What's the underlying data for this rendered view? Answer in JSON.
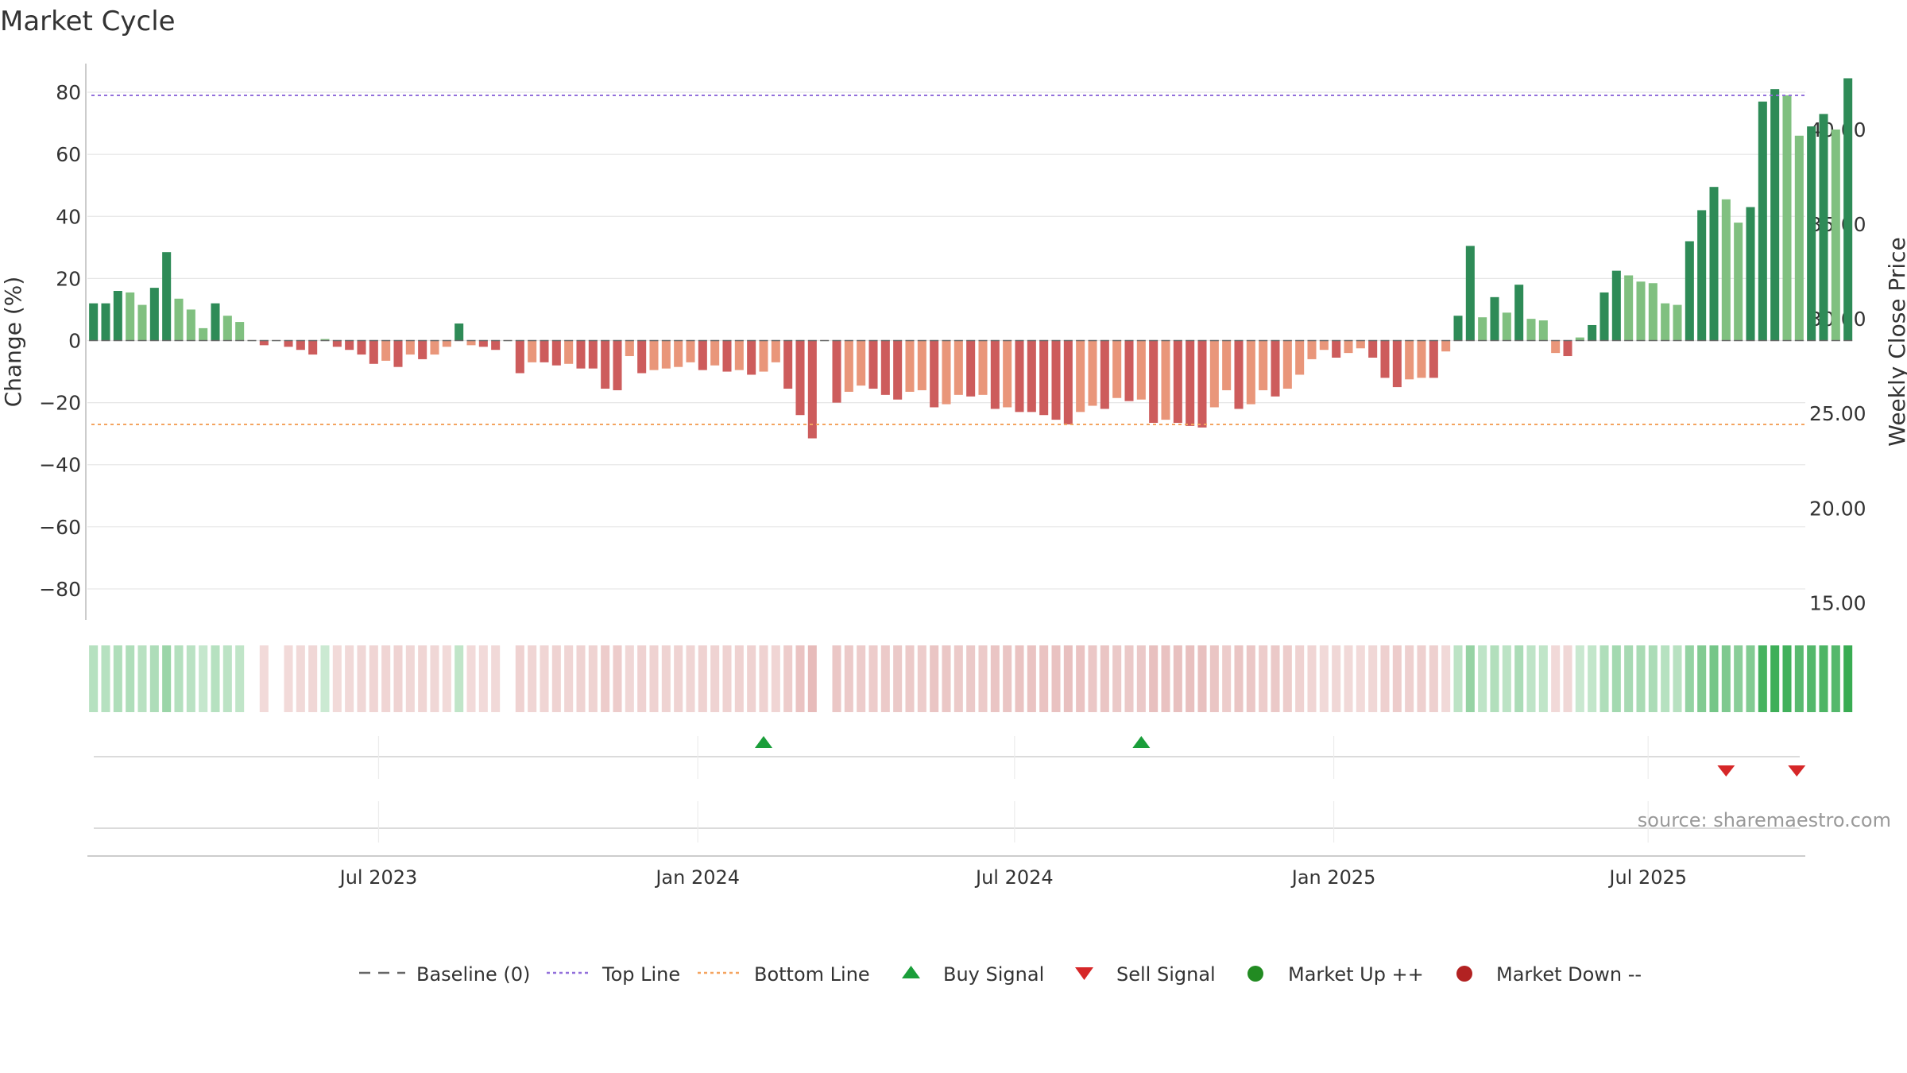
{
  "title": "Market Cycle",
  "source": "source: sharemaestro.com",
  "colors": {
    "strong_up": "#2e8b57",
    "weak_up": "#80c080",
    "strong_down": "#cd5c5c",
    "weak_down": "#e9967a",
    "top_line": "#9370db",
    "bottom_line": "#f4a460",
    "baseline": "#666666",
    "buy": "#1a9e3a",
    "sell": "#d62728",
    "market_up": "#228b22",
    "market_down": "#b22222",
    "grid": "#e6e6e6",
    "axis": "#bbbbbb"
  },
  "chart_data": {
    "type": "bar",
    "title": "Market Cycle",
    "y_left_label": "Change (%)",
    "y_right_label": "Weekly Close Price",
    "y_left_ticks": [
      "80",
      "60",
      "40",
      "20",
      "0",
      "−20",
      "−40",
      "−60",
      "−80"
    ],
    "y_left_tick_values": [
      80,
      60,
      40,
      20,
      0,
      -20,
      -40,
      -60,
      -80
    ],
    "y_left_range": [
      -90,
      90
    ],
    "y_right_ticks": [
      "40.00",
      "35.00",
      "30.00",
      "25.00",
      "20.00",
      "15.00"
    ],
    "y_right_tick_values": [
      40,
      35,
      30,
      25,
      20,
      15
    ],
    "y_right_range": [
      14.1,
      43.6
    ],
    "x_ticks": [
      "Jul 2023",
      "Jan 2024",
      "Jul 2024",
      "Jan 2025",
      "Jul 2025"
    ],
    "x_tick_weeks": [
      23.9,
      50.1,
      76.1,
      102.3,
      128.1
    ],
    "top_line": 79,
    "bottom_line": -27,
    "grid": true,
    "legend_position": "bottom",
    "weeks": 141,
    "values": [
      12,
      12,
      16,
      15.5,
      11.5,
      17,
      28.5,
      13.5,
      10,
      4,
      12,
      8,
      6,
      0,
      -1.5,
      0,
      -2,
      -3,
      -4.5,
      0.5,
      -2,
      -3,
      -4.5,
      -7.5,
      -6.5,
      -8.5,
      -4.5,
      -6,
      -4.5,
      -2,
      5.5,
      -1.5,
      -2,
      -3,
      0,
      -10.5,
      -7,
      -7,
      -8,
      -7.5,
      -9,
      -9,
      -15.5,
      -16,
      -5,
      -10.5,
      -9.5,
      -9,
      -8.5,
      -7,
      -9.5,
      -8,
      -10,
      -9.5,
      -11,
      -10,
      -7,
      -15.5,
      -24,
      -31.5,
      0,
      -20,
      -16.5,
      -14.5,
      -15.5,
      -17.5,
      -19,
      -16.5,
      -16,
      -21.5,
      -20.5,
      -17.5,
      -18,
      -17.5,
      -22,
      -21.5,
      -23,
      -23,
      -24,
      -25.5,
      -27,
      -23,
      -21,
      -22,
      -18.5,
      -19.5,
      -19,
      -26.5,
      -25.5,
      -26.5,
      -27.5,
      -28,
      -21.5,
      -16,
      -22,
      -20.5,
      -16,
      -18,
      -15.5,
      -11,
      -6,
      -3,
      -5.5,
      -4,
      -2.5,
      -5.5,
      -12,
      -15,
      -12.5,
      -12,
      -12,
      -3.5,
      8,
      30.5,
      7.5,
      14,
      9,
      18,
      7,
      6.5,
      -4,
      -5,
      1,
      5,
      15.5,
      22.5,
      21,
      19,
      18.5,
      12,
      11.5,
      32,
      42,
      49.5,
      45.5,
      38,
      43,
      77,
      81,
      79,
      66,
      69,
      73,
      68,
      84.5
    ],
    "buy_signal_weeks": [
      55.5,
      86.5
    ],
    "sell_signal_weeks": [
      134.5,
      140.3
    ]
  },
  "legend": {
    "baseline": "Baseline (0)",
    "top": "Top Line",
    "bottom": "Bottom Line",
    "buy": "Buy Signal",
    "sell": "Sell Signal",
    "up": "Market Up ++",
    "down": "Market Down --"
  }
}
